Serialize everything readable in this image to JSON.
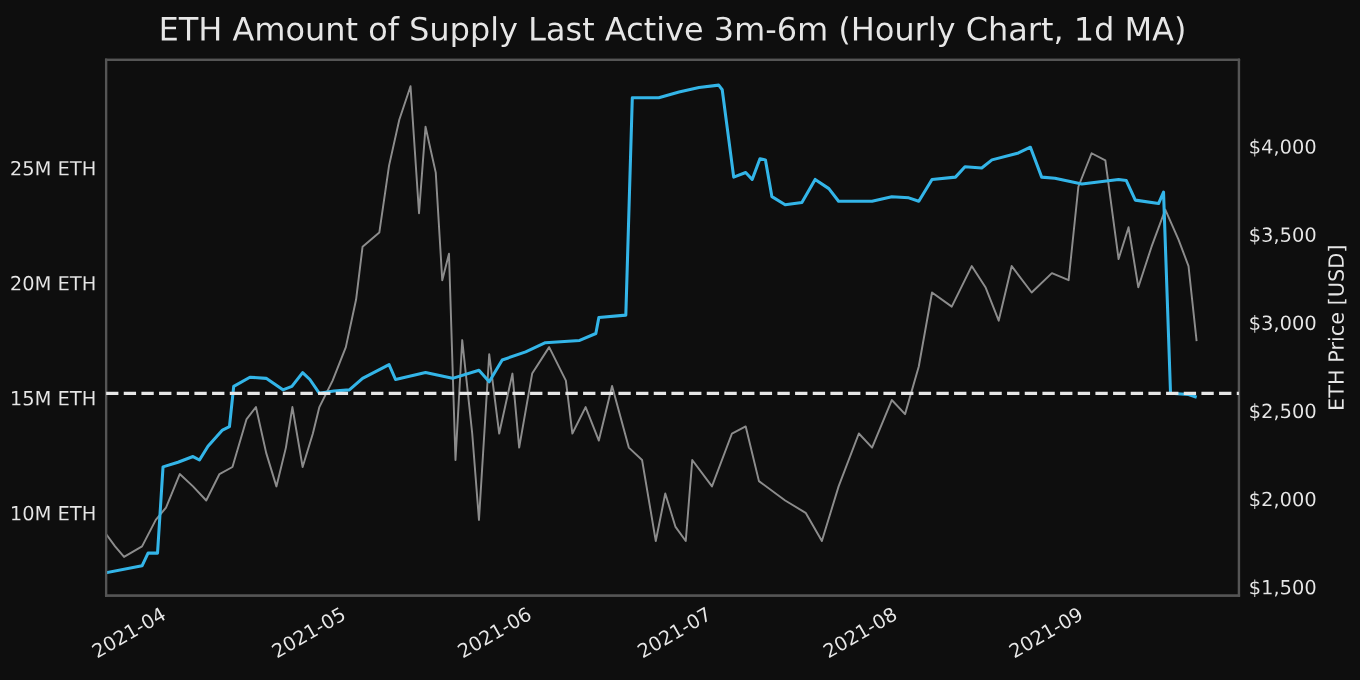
{
  "chart_data": {
    "type": "line",
    "title": "ETH Amount of Supply Last Active 3m-6m (Hourly Chart, 1d MA)",
    "y2label": "ETH Price [USD]",
    "xlim": [
      "2021-03-23",
      "2021-09-28"
    ],
    "xticks": [
      {
        "value": "2021-04-01",
        "label": "2021-04"
      },
      {
        "value": "2021-05-01",
        "label": "2021-05"
      },
      {
        "value": "2021-06-01",
        "label": "2021-06"
      },
      {
        "value": "2021-07-01",
        "label": "2021-07"
      },
      {
        "value": "2021-08-01",
        "label": "2021-08"
      },
      {
        "value": "2021-09-01",
        "label": "2021-09"
      }
    ],
    "ylim": [
      6.4,
      29.7
    ],
    "yticks": [
      {
        "value": 10,
        "label": "10M ETH"
      },
      {
        "value": 15,
        "label": "15M ETH"
      },
      {
        "value": 20,
        "label": "20M ETH"
      },
      {
        "value": 25,
        "label": "25M ETH"
      }
    ],
    "y2lim": [
      1450,
      4490
    ],
    "y2ticks": [
      {
        "value": 1500,
        "label": "$1,500"
      },
      {
        "value": 2000,
        "label": "$2,000"
      },
      {
        "value": 2500,
        "label": "$2,500"
      },
      {
        "value": 3000,
        "label": "$3,000"
      },
      {
        "value": 3500,
        "label": "$3,500"
      },
      {
        "value": 4000,
        "label": "$4,000"
      }
    ],
    "grid": false,
    "ref_lines": [
      {
        "axis": "y",
        "value": 15.2,
        "color": "#e6e6e6",
        "line_style": "dashed"
      }
    ],
    "series": [
      {
        "axis": "y2",
        "color": "#8c8c8c",
        "x": [
          "2021-03-23",
          "2021-03-24T12:00",
          "2021-03-26",
          "2021-03-29",
          "2021-03-31T07:00",
          "2021-04-02",
          "2021-04-04T07:00",
          "2021-04-06T12:00",
          "2021-04-08T17:00",
          "2021-04-10T22:00",
          "2021-04-13T02:00",
          "2021-04-15T10:00",
          "2021-04-17",
          "2021-04-18T17:00",
          "2021-04-20T10:00",
          "2021-04-22",
          "2021-04-23T02:00",
          "2021-04-24T19:00",
          "2021-04-26T12:00",
          "2021-04-27T14:00",
          "2021-04-29T19:00",
          "2021-05-02",
          "2021-05-03T17:00",
          "2021-05-04T19:00",
          "2021-05-07T14:00",
          "2021-05-09T05:00",
          "2021-05-10T22:00",
          "2021-05-12T19:00",
          "2021-05-14T05:00",
          "2021-05-15T07:00",
          "2021-05-17",
          "2021-05-18T02:00",
          "2021-05-19T05:00",
          "2021-05-20T07:00",
          "2021-05-21T10:00",
          "2021-05-23T02:00",
          "2021-05-24T05:00",
          "2021-05-25T22:00",
          "2021-05-27T14:00",
          "2021-05-29T19:00",
          "2021-05-30T22:00",
          "2021-06-02T02:00",
          "2021-06-04T22:00",
          "2021-06-07T17:00",
          "2021-06-08T19:00",
          "2021-06-11",
          "2021-06-13T05:00",
          "2021-06-15T10:00",
          "2021-06-18T05:00",
          "2021-06-20T10:00",
          "2021-06-22T17:00",
          "2021-06-24T07:00",
          "2021-06-26",
          "2021-06-27T17:00",
          "2021-06-28T19:00",
          "2021-07-02T02:00",
          "2021-07-05T10:00",
          "2021-07-07T17:00",
          "2021-07-09T22:00",
          "2021-07-14T07:00",
          "2021-07-17T17:00",
          "2021-07-20T10:00",
          "2021-07-23T05:00",
          "2021-07-26T14:00",
          "2021-07-28T19:00",
          "2021-08-01T02:00",
          "2021-08-03T07:00",
          "2021-08-05T14:00",
          "2021-08-07T19:00",
          "2021-08-11T02:00",
          "2021-08-14T10:00",
          "2021-08-16T17:00",
          "2021-08-18T22:00",
          "2021-08-21T02:00",
          "2021-08-24T10:00",
          "2021-08-27T19:00",
          "2021-08-30T14:00",
          "2021-09-01T05:00",
          "2021-09-03T10:00",
          "2021-09-05T17:00",
          "2021-09-07T22:00",
          "2021-09-09T14:00",
          "2021-09-11T05:00",
          "2021-09-13T10:00",
          "2021-09-15T17:00",
          "2021-09-17T22:00",
          "2021-09-19T14:00",
          "2021-09-20T22:00"
        ],
        "values": [
          1800,
          1730,
          1670,
          1730,
          1880,
          1950,
          2140,
          2070,
          1990,
          2140,
          2180,
          2450,
          2520,
          2260,
          2070,
          2290,
          2520,
          2180,
          2370,
          2520,
          2670,
          2860,
          3130,
          3430,
          3510,
          3890,
          4150,
          4340,
          3620,
          4110,
          3850,
          3240,
          3390,
          2220,
          2900,
          2370,
          1880,
          2820,
          2370,
          2710,
          2290,
          2710,
          2860,
          2670,
          2370,
          2520,
          2330,
          2640,
          2290,
          2220,
          1760,
          2030,
          1840,
          1760,
          2220,
          2070,
          2370,
          2410,
          2100,
          1990,
          1920,
          1760,
          2070,
          2370,
          2290,
          2560,
          2480,
          2750,
          3170,
          3090,
          3320,
          3200,
          3010,
          3320,
          3170,
          3280,
          3240,
          3770,
          3960,
          3920,
          3360,
          3540,
          3200,
          3430,
          3640,
          3470,
          3320,
          2900
        ]
      },
      {
        "axis": "y",
        "color": "#33b5e8",
        "x": [
          "2021-03-23",
          "2021-03-29",
          "2021-03-30",
          "2021-03-31T14:00",
          "2021-04-01T12:00",
          "2021-04-04",
          "2021-04-06T12:00",
          "2021-04-07T14:00",
          "2021-04-09",
          "2021-04-11T10:00",
          "2021-04-12T14:00",
          "2021-04-13T07:00",
          "2021-04-16",
          "2021-04-18T17:00",
          "2021-04-21T12:00",
          "2021-04-23",
          "2021-04-24T19:00",
          "2021-04-26",
          "2021-04-27T14:00",
          "2021-04-30",
          "2021-05-02T14:00",
          "2021-05-04T19:00",
          "2021-05-09T05:00",
          "2021-05-10T07:00",
          "2021-05-15T07:00",
          "2021-05-19T19:00",
          "2021-05-24T05:00",
          "2021-05-25T22:00",
          "2021-05-28T02:00",
          "2021-06-01",
          "2021-06-04T07:00",
          "2021-06-10",
          "2021-06-12T17:00",
          "2021-06-13T05:00",
          "2021-06-17T17:00",
          "2021-06-18T19:00",
          "2021-06-23T05:00",
          "2021-06-26T14:00",
          "2021-06-29T22:00",
          "2021-07-03T05:00",
          "2021-07-03T19:00",
          "2021-07-05T17:00",
          "2021-07-07T17:00",
          "2021-07-08T19:00",
          "2021-07-10T02:00",
          "2021-07-11",
          "2021-07-12T02:00",
          "2021-07-14T07:00",
          "2021-07-17T02:00",
          "2021-07-19T07:00",
          "2021-07-21T14:00",
          "2021-07-23T05:00",
          "2021-07-28T19:00",
          "2021-08-01T02:00",
          "2021-08-03T22:00",
          "2021-08-05T14:00",
          "2021-08-07T19:00",
          "2021-08-11T17:00",
          "2021-08-13T07:00",
          "2021-08-16T02:00",
          "2021-08-17T19:00",
          "2021-08-22T05:00",
          "2021-08-24T05:00",
          "2021-08-26T02:00",
          "2021-08-28T07:00",
          "2021-09-01T19:00",
          "2021-09-07T22:00",
          "2021-09-09T05:00",
          "2021-09-10T17:00",
          "2021-09-14T14:00",
          "2021-09-15T10:00",
          "2021-09-16T14:00",
          "2021-09-19T14:00",
          "2021-09-20T17:00"
        ],
        "values": [
          7.4,
          7.7,
          8.25,
          8.25,
          12.0,
          12.2,
          12.45,
          12.3,
          12.9,
          13.6,
          13.75,
          15.5,
          15.9,
          15.85,
          15.35,
          15.5,
          16.1,
          15.8,
          15.2,
          15.3,
          15.35,
          15.85,
          16.45,
          15.8,
          16.1,
          15.85,
          16.2,
          15.7,
          16.65,
          17.0,
          17.4,
          17.5,
          17.8,
          18.5,
          18.6,
          28.05,
          28.05,
          28.3,
          28.5,
          28.6,
          28.4,
          24.6,
          24.8,
          24.5,
          25.4,
          25.35,
          23.75,
          23.4,
          23.5,
          24.5,
          24.1,
          23.55,
          23.55,
          23.75,
          23.7,
          23.55,
          24.5,
          24.6,
          25.05,
          25.0,
          25.35,
          25.65,
          25.9,
          24.6,
          24.55,
          24.3,
          24.5,
          24.45,
          23.6,
          23.45,
          23.95,
          15.2,
          15.15,
          15.05
        ]
      }
    ]
  }
}
